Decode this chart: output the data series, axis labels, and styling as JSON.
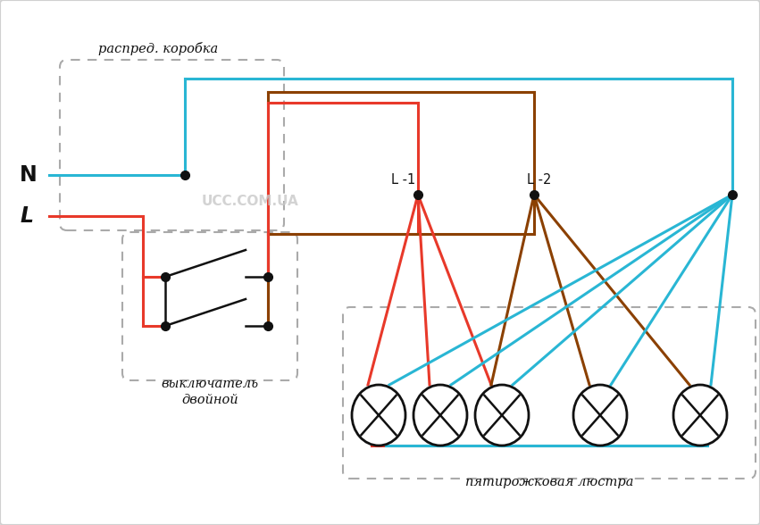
{
  "bg_color": "#ffffff",
  "cyan": "#29b6d4",
  "red": "#e8392a",
  "brown": "#8B4000",
  "black": "#111111",
  "label_distrib": "распред. коробка",
  "label_switch": "выключатель",
  "label_switch2": "двойной",
  "label_chandelier": "пятирожковая люстра",
  "label_L1": "L -1",
  "label_L2": "L -2",
  "label_N": "N",
  "label_L": "L",
  "label_ucc": "UCC.COM.UA",
  "figsize": [
    8.51,
    5.88
  ],
  "dpi": 100
}
